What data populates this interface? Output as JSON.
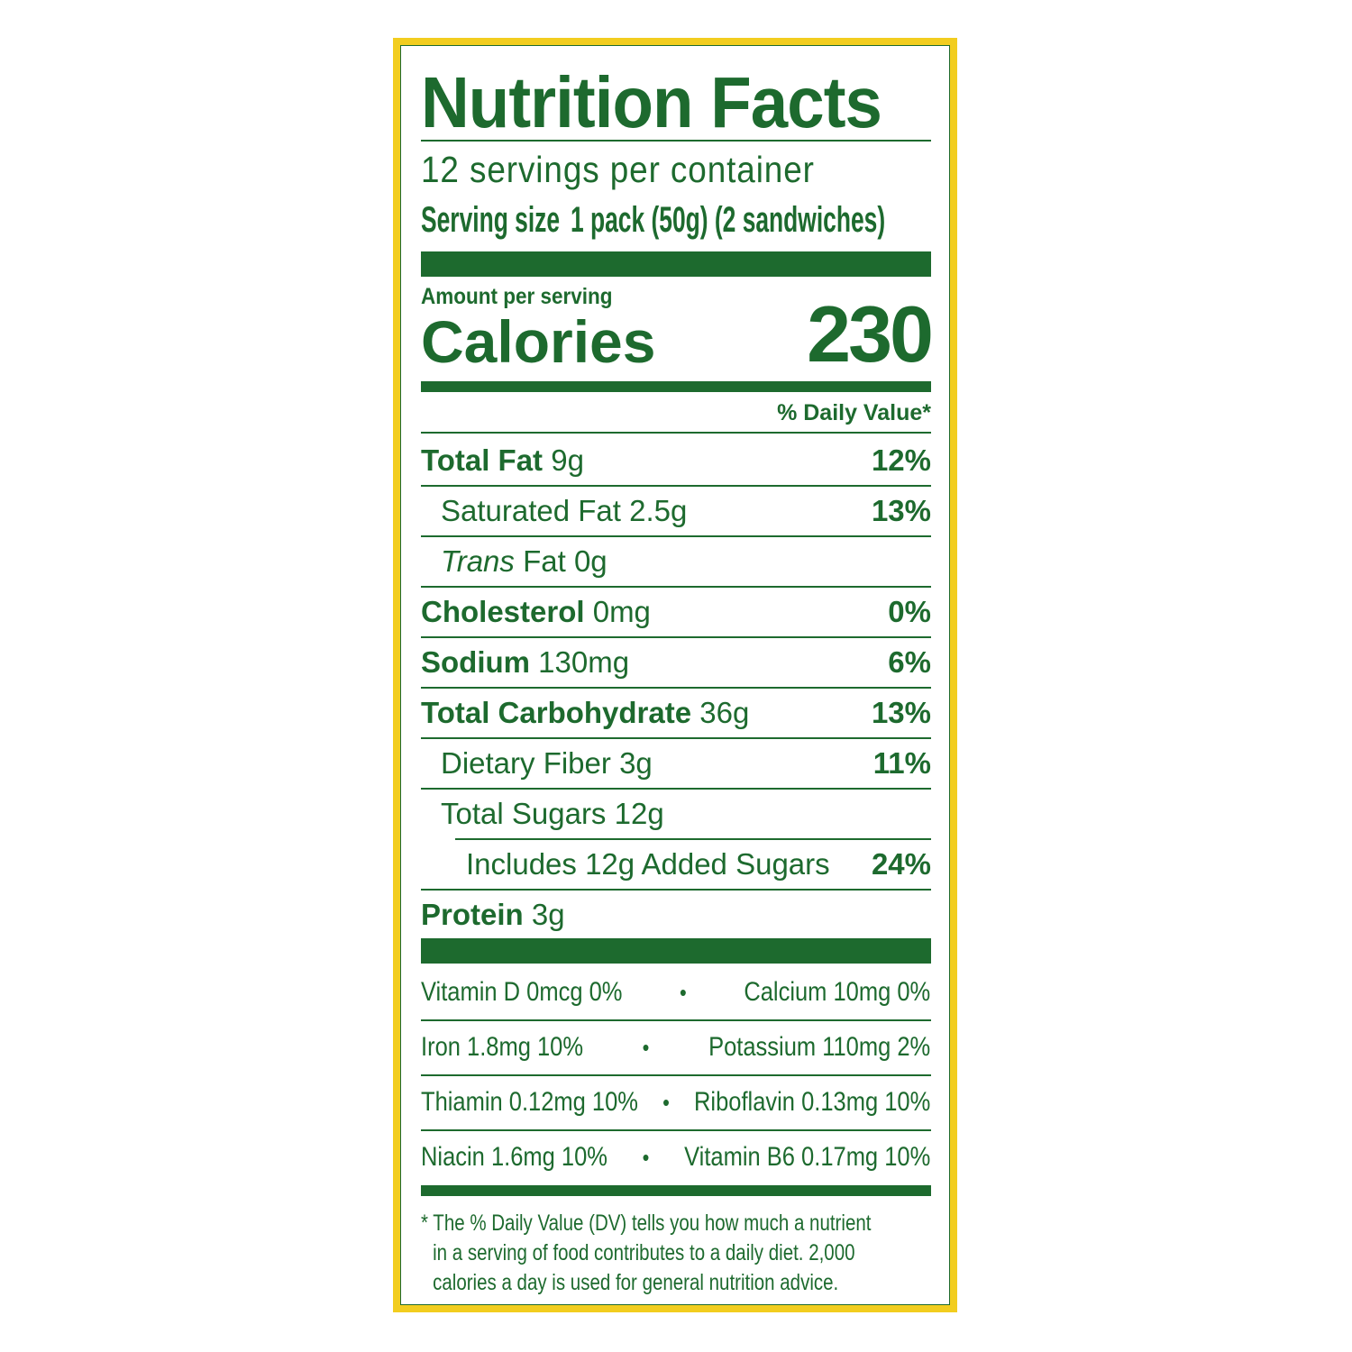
{
  "colors": {
    "border": "#f2cd1f",
    "text": "#1d6a2e"
  },
  "title": "Nutrition Facts",
  "servings": "12 servings per container",
  "serving_size": {
    "label": "Serving size",
    "value": "1 pack (50g) (2 sandwiches)"
  },
  "amount_per_serving": "Amount per serving",
  "calories": {
    "label": "Calories",
    "value": "230"
  },
  "daily_value_header": "% Daily Value*",
  "nutrients": [
    {
      "name": "Total Fat",
      "amount": "9g",
      "dv": "12%"
    },
    {
      "name": "Saturated Fat",
      "amount": "2.5g",
      "dv": "13%"
    },
    {
      "name": "Trans",
      "name_rest": "Fat",
      "amount": "0g",
      "dv": ""
    },
    {
      "name": "Cholesterol",
      "amount": "0mg",
      "dv": "0%"
    },
    {
      "name": "Sodium",
      "amount": "130mg",
      "dv": "6%"
    },
    {
      "name": "Total Carbohydrate",
      "amount": "36g",
      "dv": "13%"
    },
    {
      "name": "Dietary Fiber",
      "amount": "3g",
      "dv": "11%"
    },
    {
      "name": "Total Sugars",
      "amount": "12g",
      "dv": ""
    },
    {
      "name": "Includes 12g Added Sugars",
      "amount": "",
      "dv": "24%"
    },
    {
      "name": "Protein",
      "amount": "3g",
      "dv": ""
    }
  ],
  "vitamins": [
    {
      "left": "Vitamin D 0mcg 0%",
      "right": "Calcium 10mg 0%"
    },
    {
      "left": "Iron 1.8mg 10%",
      "right": "Potassium 110mg 2%"
    },
    {
      "left": "Thiamin 0.12mg 10%",
      "right": "Riboflavin 0.13mg 10%"
    },
    {
      "left": "Niacin 1.6mg 10%",
      "right": "Vitamin B6 0.17mg 10%"
    }
  ],
  "bullet": "•",
  "footnote": [
    "* The % Daily Value (DV) tells you how much a nutrient",
    "in a serving of food contributes to a daily diet. 2,000",
    "calories a day is used for general nutrition advice."
  ]
}
